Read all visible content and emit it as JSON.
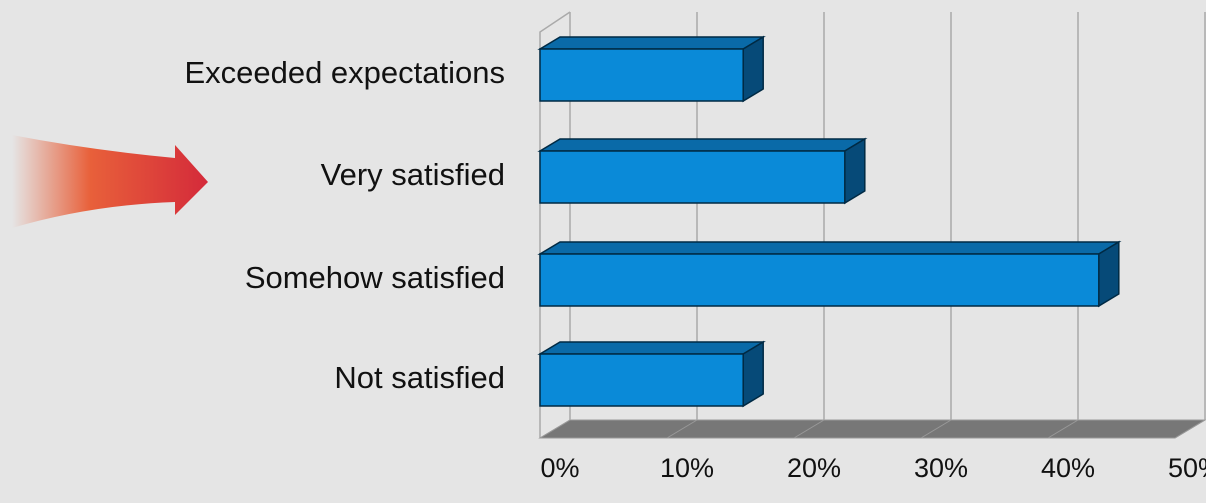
{
  "chart_data": {
    "type": "bar",
    "orientation": "horizontal",
    "categories": [
      "Exceeded expectations",
      "Very satisfied",
      "Somehow satisfied",
      "Not satisfied"
    ],
    "values": [
      16,
      24,
      44,
      16
    ],
    "color": "#0a8ad8",
    "xlim": [
      0,
      50
    ],
    "xticks": [
      {
        "value": 0,
        "label": "0%"
      },
      {
        "value": 10,
        "label": "10%"
      },
      {
        "value": 20,
        "label": "20%"
      },
      {
        "value": 30,
        "label": "30%"
      },
      {
        "value": 40,
        "label": "40%"
      },
      {
        "value": 50,
        "label": "50%"
      }
    ],
    "grid": true
  }
}
